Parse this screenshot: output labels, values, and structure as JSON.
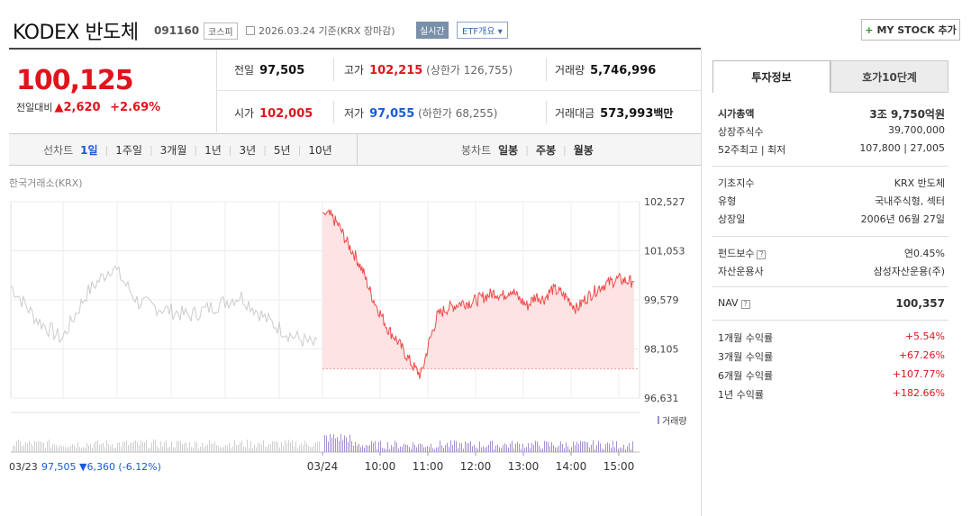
{
  "header": {
    "title": "KODEX 반도체",
    "code": "091160",
    "market": "코스피",
    "date": "2026.03.24 기준(KRX 장마감)",
    "realtime": "실시간",
    "etf_btn": "ETF개요 ▾",
    "mystock": "MY STOCK 추가"
  },
  "price": {
    "current": "100,125",
    "diff_label": "전일대비",
    "diff": "▲2,620",
    "pct": "+2.69%"
  },
  "summary": {
    "prev_close_label": "전일",
    "prev_close": "97,505",
    "high_label": "고가",
    "high": "102,215",
    "upper_limit": "(상한가 126,755)",
    "volume_label": "거래량",
    "volume": "5,746,996",
    "open_label": "시가",
    "open": "102,005",
    "low_label": "저가",
    "low": "97,055",
    "lower_limit": "(하한가 68,255)",
    "amount_label": "거래대금",
    "amount": "573,993",
    "amount_unit": "백만"
  },
  "periods": {
    "line_label": "선차트",
    "line_items": [
      "1일",
      "1주일",
      "3개월",
      "1년",
      "3년",
      "5년",
      "10년"
    ],
    "active": "1일",
    "candle_label": "봉차트",
    "candle_items": [
      "일봉",
      "주봉",
      "월봉"
    ]
  },
  "chart": {
    "exchange": "한국거래소(KRX)",
    "y_ticks": [
      "102,527",
      "101,053",
      "99,579",
      "98,105",
      "96,631"
    ],
    "y_values": [
      102527,
      101053,
      99579,
      98105,
      96631
    ],
    "x_ticks": [
      "03/24",
      "10:00",
      "11:00",
      "12:00",
      "13:00",
      "14:00",
      "15:00"
    ],
    "prev_day_label": "03/23",
    "prev_day_value": "97,505",
    "prev_day_change": "▼6,360",
    "prev_day_pct": "(-6.12%)",
    "volume_legend": "거래량",
    "colors": {
      "up": "#f04a4a",
      "fill": "#fde3e3",
      "prev": "#cccccc",
      "vol_prev": "#cfcfcf",
      "vol_today": "#a58fd1"
    }
  },
  "chart_data": {
    "type": "line",
    "title": "",
    "ylim": [
      96631,
      102527
    ],
    "series": [
      {
        "name": "",
        "x": [
          "09:00",
          "09:10",
          "09:20",
          "09:30",
          "09:40",
          "09:50",
          "10:00",
          "10:10",
          "10:20",
          "10:30",
          "10:40",
          "10:50",
          "11:00",
          "11:10",
          "11:20",
          "11:30",
          "11:40",
          "11:50",
          "12:00",
          "12:10",
          "12:20",
          "12:30",
          "12:40",
          "12:50",
          "13:00",
          "13:10",
          "13:20",
          "13:30",
          "13:40",
          "13:50",
          "14:00",
          "14:10",
          "14:20",
          "14:30",
          "14:40",
          "14:50",
          "15:00",
          "15:10",
          "15:20"
        ],
        "values": [
          102200,
          102100,
          101800,
          101300,
          100900,
          100400,
          99700,
          99200,
          98700,
          98400,
          98000,
          97600,
          97300,
          98300,
          99100,
          99300,
          99400,
          99500,
          99500,
          99600,
          99700,
          99800,
          99700,
          99900,
          99600,
          99400,
          99700,
          99600,
          99900,
          99800,
          99600,
          99300,
          99600,
          99800,
          100000,
          100100,
          100200,
          100150,
          100125
        ]
      }
    ]
  },
  "panel": {
    "tab_active": "투자정보",
    "tab_inactive": "호가10단계",
    "rows1": [
      {
        "k": "시가총액",
        "v": "3조 9,750억원",
        "bold": true
      },
      {
        "k": "상장주식수",
        "v": "39,700,000"
      },
      {
        "k": "52주최고 | 최저",
        "v": "107,800 | 27,005"
      }
    ],
    "rows2": [
      {
        "k": "기초지수",
        "v": "KRX 반도체"
      },
      {
        "k": "유형",
        "v": "국내주식형, 섹터"
      },
      {
        "k": "상장일",
        "v": "2006년 06월 27일"
      }
    ],
    "rows3": [
      {
        "k": "펀드보수",
        "v": "연0.45%"
      },
      {
        "k": "자산운용사",
        "v": "삼성자산운용(주)"
      }
    ],
    "nav_label": "NAV",
    "nav_value": "100,357",
    "returns": [
      {
        "k": "1개월 수익률",
        "v": "+5.54%"
      },
      {
        "k": "3개월 수익률",
        "v": "+67.26%"
      },
      {
        "k": "6개월 수익률",
        "v": "+107.77%"
      },
      {
        "k": "1년 수익률",
        "v": "+182.66%"
      }
    ]
  }
}
